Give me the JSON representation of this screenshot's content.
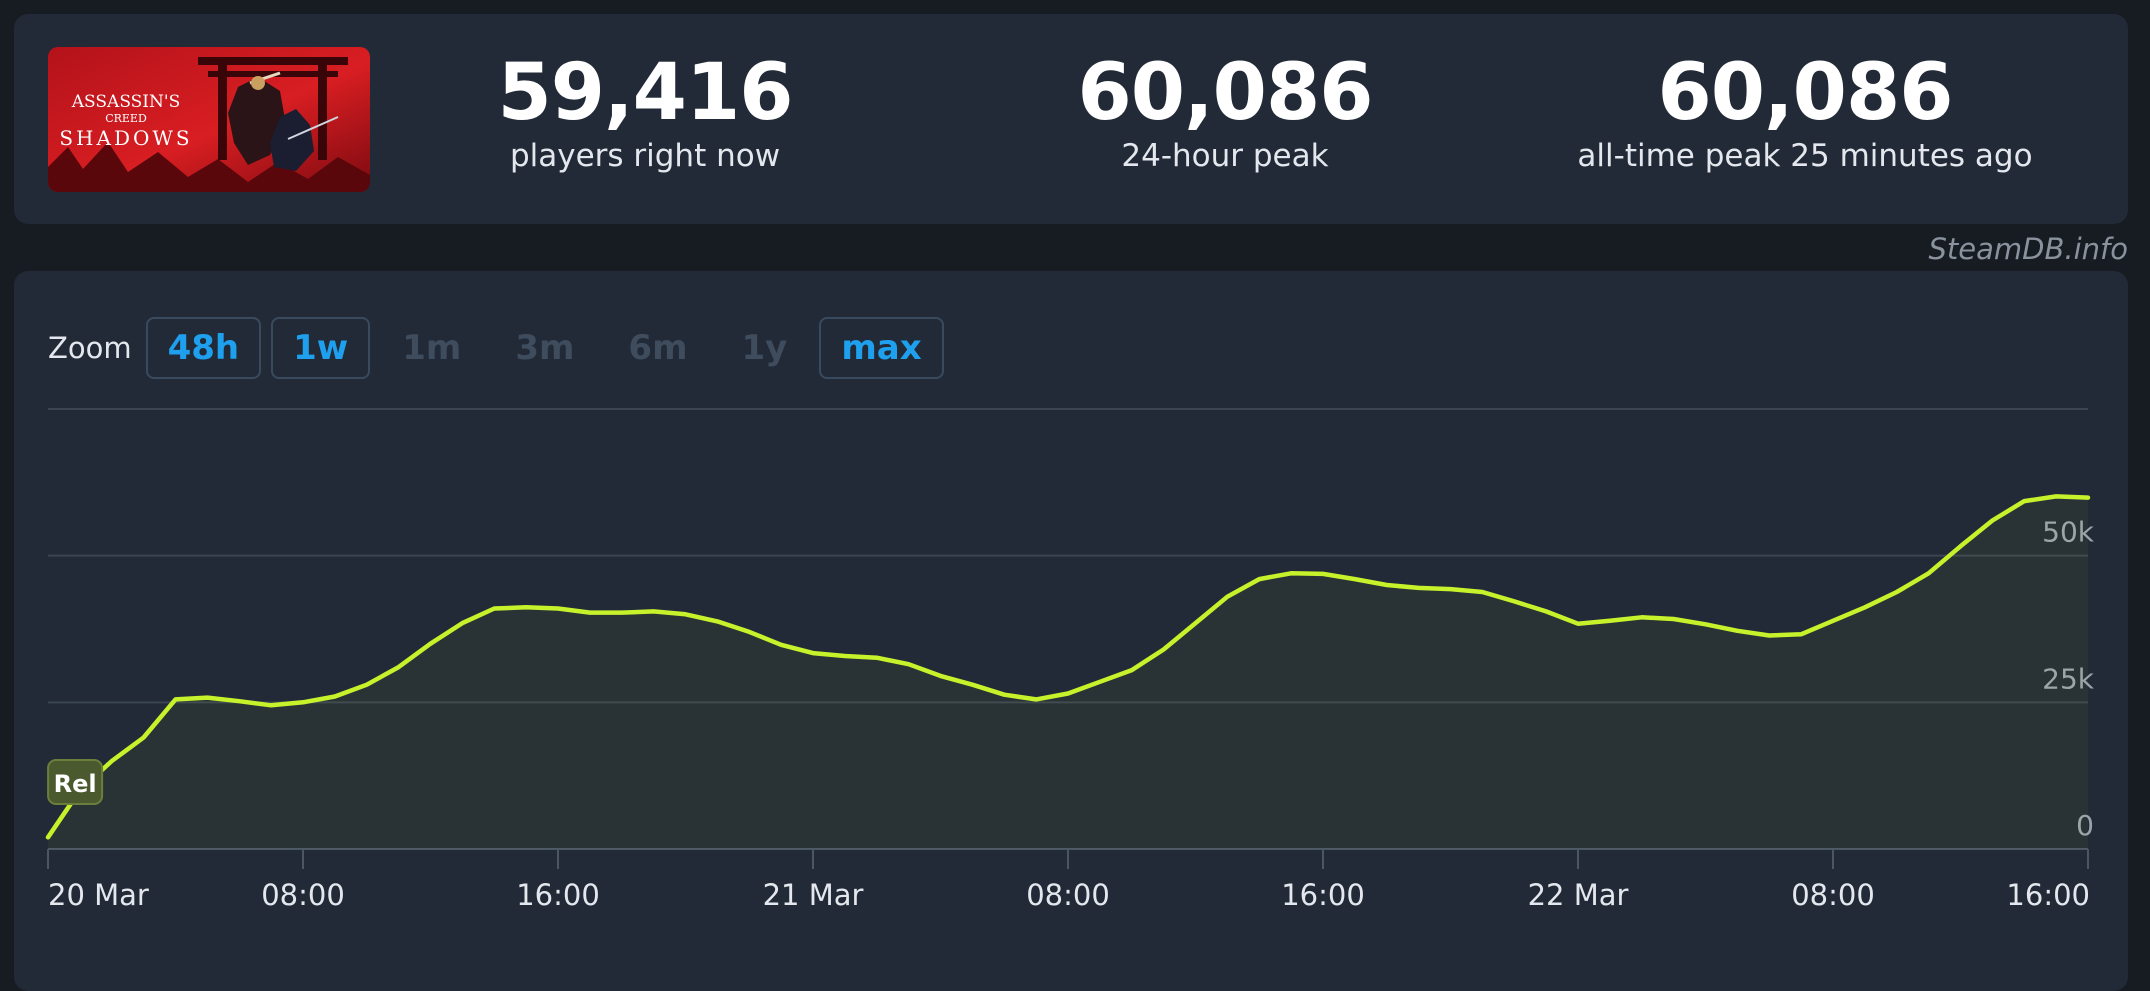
{
  "game": {
    "capsule_title_line1": "ASSASSIN'S",
    "capsule_title_line2": "CREED",
    "capsule_title_line3": "SHADOWS"
  },
  "stats": [
    {
      "value": "59,416",
      "label": "players right now"
    },
    {
      "value": "60,086",
      "label": "24-hour peak"
    },
    {
      "value": "60,086",
      "label": "all-time peak 25 minutes ago"
    }
  ],
  "watermark": "SteamDB.info",
  "zoom": {
    "label": "Zoom",
    "buttons": [
      {
        "label": "48h",
        "enabled": true
      },
      {
        "label": "1w",
        "enabled": true
      },
      {
        "label": "1m",
        "enabled": false
      },
      {
        "label": "3m",
        "enabled": false
      },
      {
        "label": "6m",
        "enabled": false
      },
      {
        "label": "1y",
        "enabled": false
      },
      {
        "label": "max",
        "enabled": true
      }
    ]
  },
  "colors": {
    "line": "#c6f22c",
    "grid": "#3a4452",
    "enabled_zoom": "#1ea0ef",
    "release_badge": "#4a5a2e"
  },
  "chart_data": {
    "type": "line",
    "x_unit": "hours since 20 Mar 00:00",
    "xlim": [
      0,
      64
    ],
    "ylim": [
      0,
      75000
    ],
    "y_ticks": [
      {
        "value": 0,
        "label": "0"
      },
      {
        "value": 25000,
        "label": "25k"
      },
      {
        "value": 50000,
        "label": "50k"
      }
    ],
    "x_ticks": [
      {
        "value": 0,
        "label": "20 Mar"
      },
      {
        "value": 8,
        "label": "08:00"
      },
      {
        "value": 16,
        "label": "16:00"
      },
      {
        "value": 24,
        "label": "21 Mar"
      },
      {
        "value": 32,
        "label": "08:00"
      },
      {
        "value": 40,
        "label": "16:00"
      },
      {
        "value": 48,
        "label": "22 Mar"
      },
      {
        "value": 56,
        "label": "08:00"
      },
      {
        "value": 64,
        "label": "16:00"
      }
    ],
    "annotation": {
      "label": "Rel",
      "x": 0.85
    },
    "series": [
      {
        "values": [
          [
            0,
            2000
          ],
          [
            1,
            10000
          ],
          [
            2,
            15000
          ],
          [
            3,
            19000
          ],
          [
            4,
            25500
          ],
          [
            5,
            25800
          ],
          [
            6,
            25200
          ],
          [
            7,
            24500
          ],
          [
            8,
            25000
          ],
          [
            9,
            26000
          ],
          [
            10,
            28000
          ],
          [
            11,
            31000
          ],
          [
            12,
            35000
          ],
          [
            13,
            38500
          ],
          [
            14,
            41000
          ],
          [
            15,
            41200
          ],
          [
            16,
            41000
          ],
          [
            17,
            40300
          ],
          [
            18,
            40300
          ],
          [
            19,
            40500
          ],
          [
            20,
            40000
          ],
          [
            21,
            38800
          ],
          [
            22,
            37000
          ],
          [
            23,
            34800
          ],
          [
            24,
            33400
          ],
          [
            25,
            32900
          ],
          [
            26,
            32600
          ],
          [
            27,
            31500
          ],
          [
            28,
            29500
          ],
          [
            29,
            28000
          ],
          [
            30,
            26300
          ],
          [
            31,
            25500
          ],
          [
            32,
            26500
          ],
          [
            33,
            28500
          ],
          [
            34,
            30500
          ],
          [
            35,
            34000
          ],
          [
            36,
            38500
          ],
          [
            37,
            43000
          ],
          [
            38,
            46000
          ],
          [
            39,
            47000
          ],
          [
            40,
            46900
          ],
          [
            41,
            46000
          ],
          [
            42,
            45000
          ],
          [
            43,
            44500
          ],
          [
            44,
            44300
          ],
          [
            45,
            43800
          ],
          [
            46,
            42200
          ],
          [
            47,
            40500
          ],
          [
            48,
            38400
          ],
          [
            49,
            38900
          ],
          [
            50,
            39500
          ],
          [
            51,
            39200
          ],
          [
            52,
            38300
          ],
          [
            53,
            37200
          ],
          [
            54,
            36400
          ],
          [
            55,
            36600
          ],
          [
            56,
            38900
          ],
          [
            57,
            41200
          ],
          [
            58,
            43800
          ],
          [
            59,
            47000
          ],
          [
            60,
            51600
          ],
          [
            61,
            56000
          ],
          [
            62,
            59300
          ],
          [
            63,
            60100
          ],
          [
            64,
            59900
          ]
        ]
      }
    ]
  }
}
